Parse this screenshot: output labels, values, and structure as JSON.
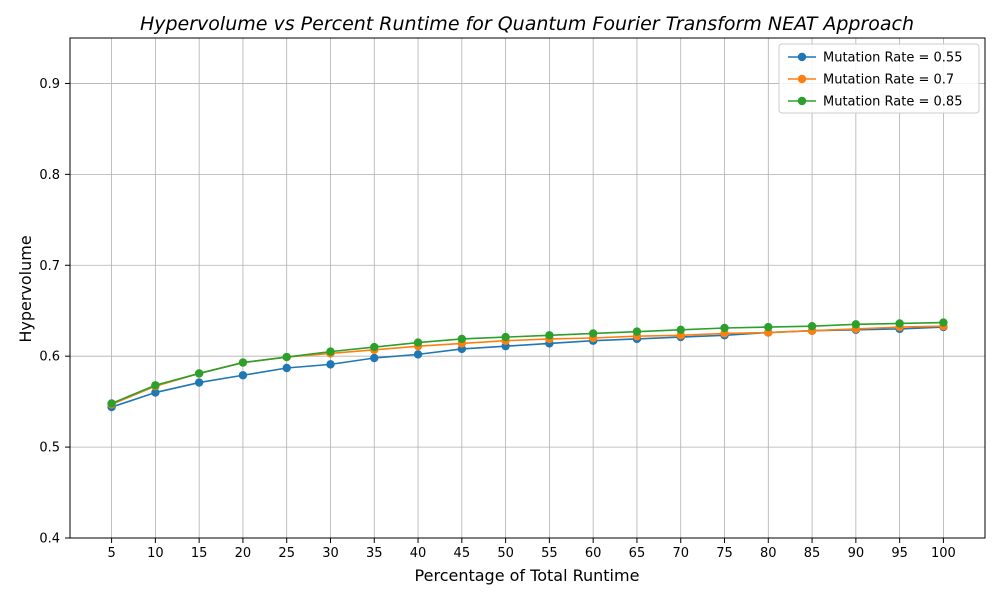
{
  "chart_data": {
    "type": "line",
    "title": "Hypervolume vs Percent Runtime for Quantum Fourier Transform NEAT Approach",
    "xlabel": "Percentage of Total Runtime",
    "ylabel": "Hypervolume",
    "x": [
      5,
      10,
      15,
      20,
      25,
      30,
      35,
      40,
      45,
      50,
      55,
      60,
      65,
      70,
      75,
      80,
      85,
      90,
      95,
      100
    ],
    "ylim": [
      0.4,
      0.95
    ],
    "yticks": [
      0.4,
      0.5,
      0.6,
      0.7,
      0.8,
      0.9
    ],
    "grid": true,
    "legend_position": "top-right",
    "series": [
      {
        "name": "Mutation Rate = 0.55",
        "color": "#1f77b4",
        "values": [
          0.544,
          0.56,
          0.571,
          0.579,
          0.587,
          0.591,
          0.598,
          0.602,
          0.608,
          0.611,
          0.614,
          0.617,
          0.619,
          0.621,
          0.623,
          0.626,
          0.628,
          0.629,
          0.63,
          0.632
        ]
      },
      {
        "name": "Mutation Rate = 0.7",
        "color": "#ff7f0e",
        "values": [
          0.547,
          0.567,
          0.581,
          0.593,
          0.599,
          0.603,
          0.607,
          0.611,
          0.614,
          0.617,
          0.619,
          0.62,
          0.622,
          0.623,
          0.625,
          0.626,
          0.628,
          0.63,
          0.632,
          0.633
        ]
      },
      {
        "name": "Mutation Rate = 0.85",
        "color": "#2ca02c",
        "values": [
          0.548,
          0.568,
          0.581,
          0.593,
          0.599,
          0.605,
          0.61,
          0.615,
          0.619,
          0.621,
          0.623,
          0.625,
          0.627,
          0.629,
          0.631,
          0.632,
          0.633,
          0.635,
          0.636,
          0.637
        ]
      }
    ]
  }
}
